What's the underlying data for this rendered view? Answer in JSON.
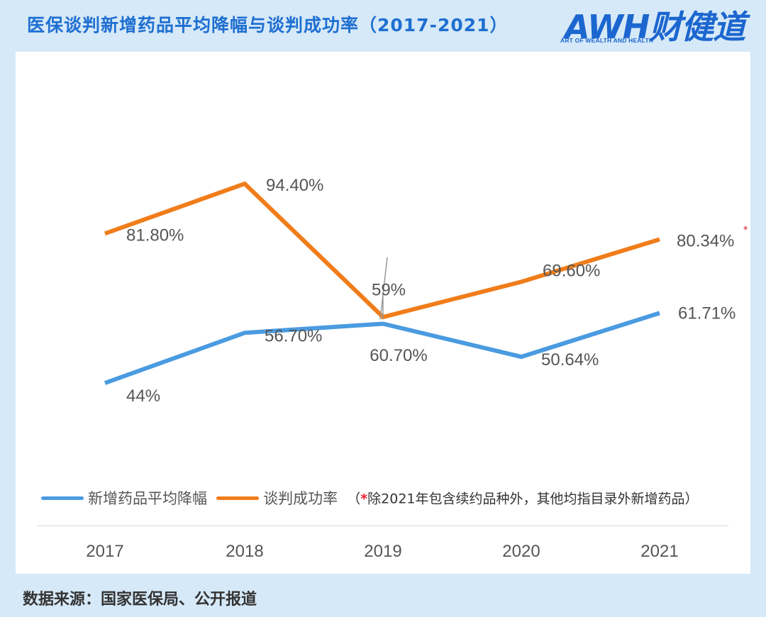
{
  "header": {
    "title": "医保谈判新增药品平均降幅与谈判成功率（2017-2021）",
    "logo_main": "AWH财健道",
    "logo_sub": "ART OF WEALTH AND HEALTH"
  },
  "chart_data": {
    "type": "line",
    "categories": [
      "2017",
      "2018",
      "2019",
      "2020",
      "2021"
    ],
    "series": [
      {
        "name": "新增药品平均降幅",
        "color": "#4a9be0",
        "values": [
          44,
          56.7,
          59,
          50.64,
          61.71
        ],
        "labels": [
          "44%",
          "56.70%",
          "59%",
          "50.64%",
          "61.71%"
        ]
      },
      {
        "name": "谈判成功率",
        "color": "#f07d1a",
        "values": [
          81.8,
          94.4,
          60.7,
          69.6,
          80.34
        ],
        "labels": [
          "81.80%",
          "94.40%",
          "60.70%",
          "69.60%",
          "80.34%"
        ]
      }
    ],
    "annotation": "*",
    "legend_note": "（*除2021年包含续约品种外，其他均指目录外新增药品）",
    "grid": false,
    "legend_position": "bottom"
  },
  "footer": {
    "source": "数据来源：国家医保局、公开报道"
  }
}
